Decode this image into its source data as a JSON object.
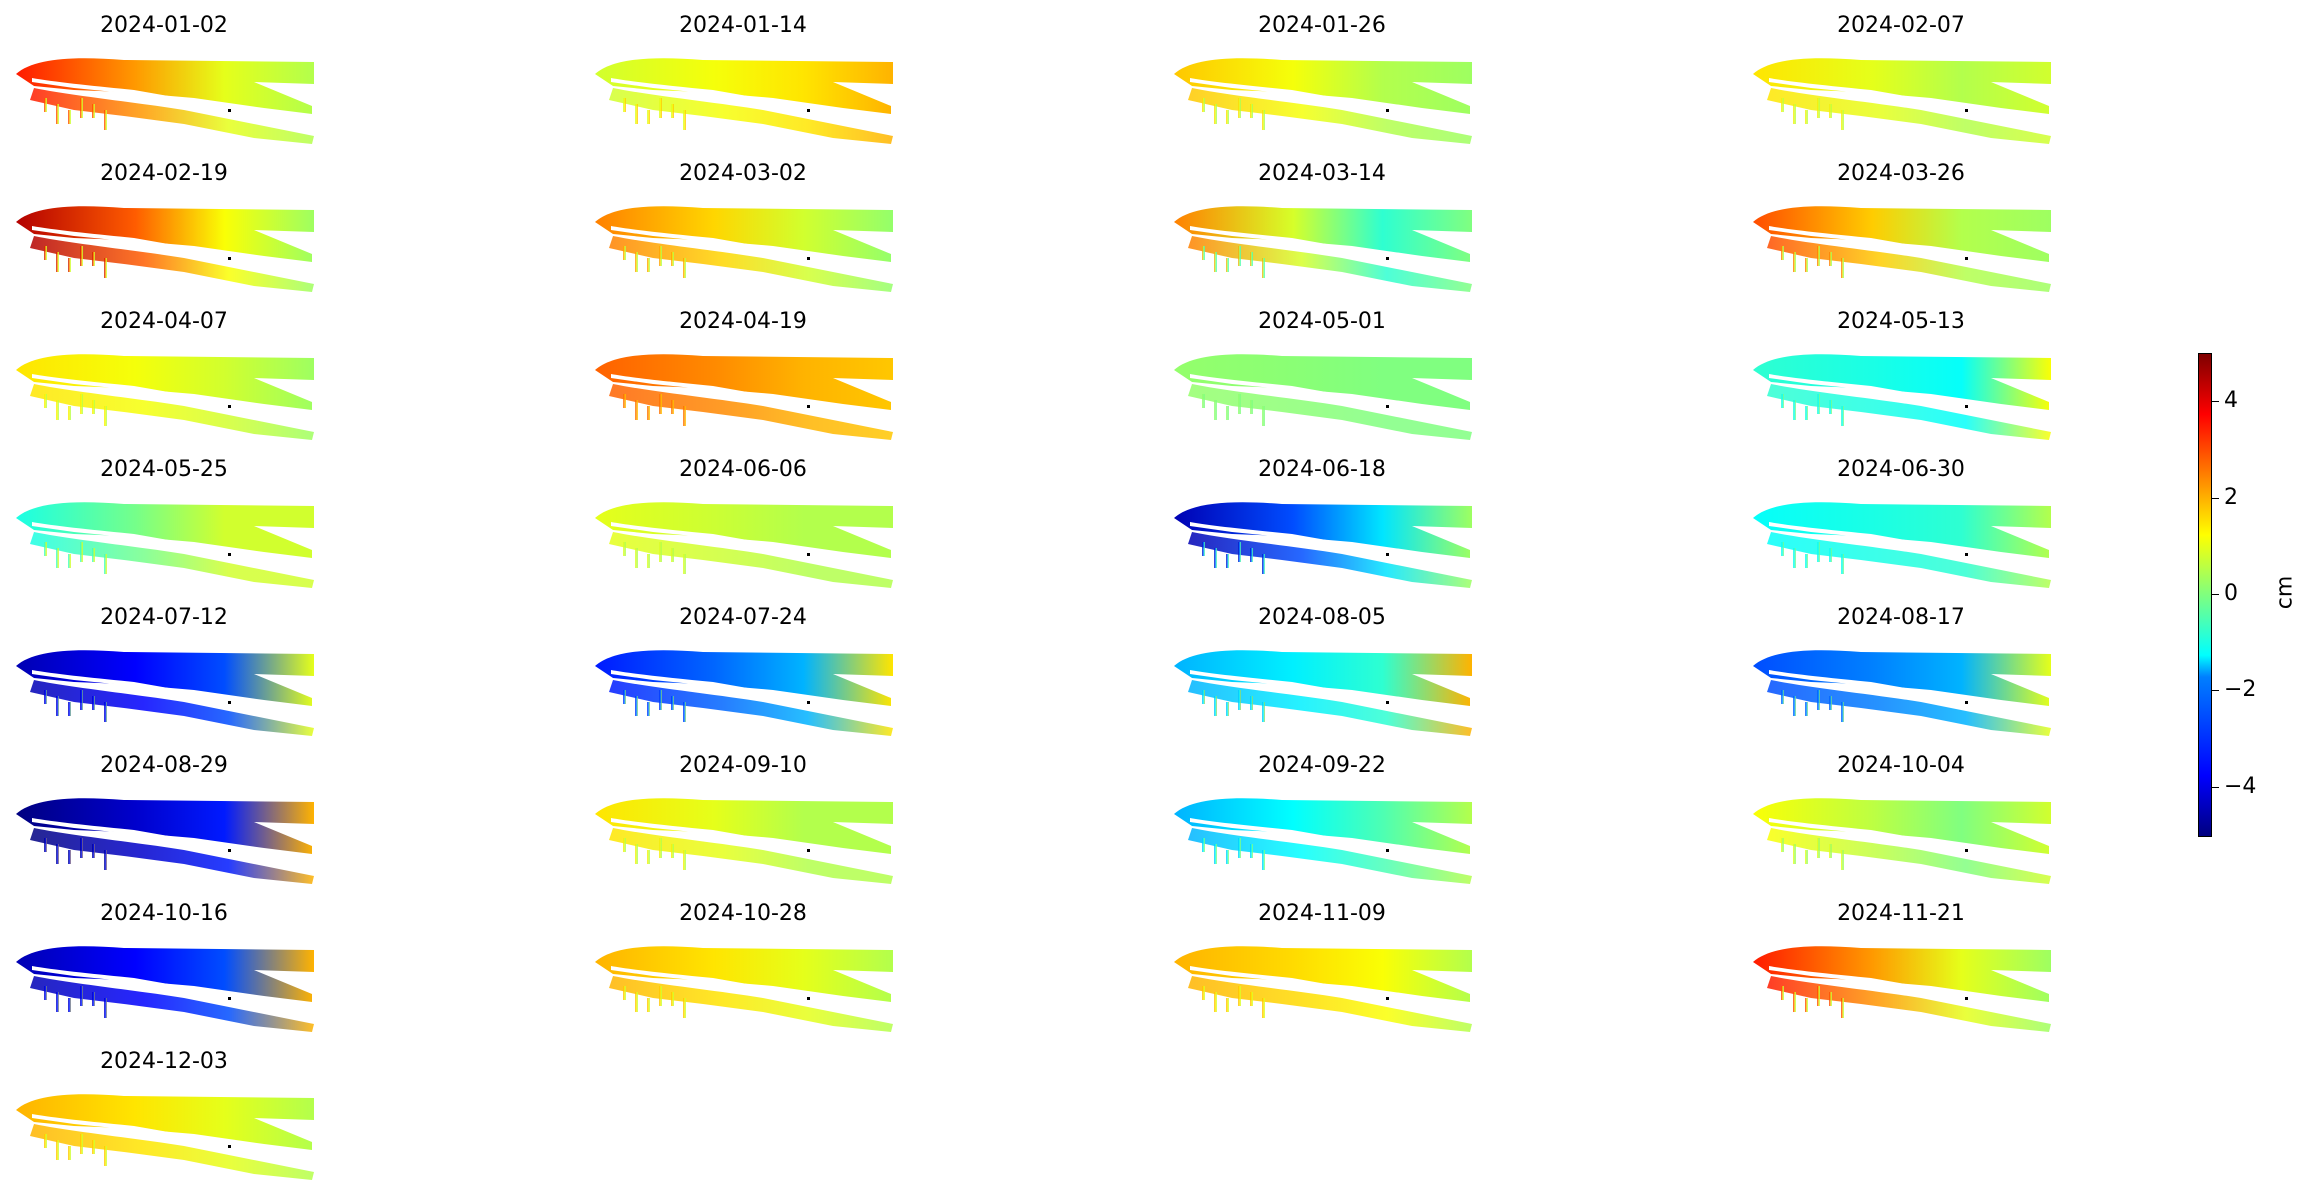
{
  "chart_data": {
    "type": "heatmap",
    "description_source": "displacement map panels",
    "colormap": "jet",
    "panels": [
      {
        "title": "2024-01-02",
        "head": 3.5,
        "mid": 1.0,
        "tail": 0.5
      },
      {
        "title": "2024-01-14",
        "head": 0.8,
        "mid": 1.5,
        "tail": 2.0
      },
      {
        "title": "2024-01-26",
        "head": 1.8,
        "mid": 0.5,
        "tail": 0.3
      },
      {
        "title": "2024-02-07",
        "head": 1.5,
        "mid": 0.5,
        "tail": 0.8
      },
      {
        "title": "2024-02-19",
        "head": 4.5,
        "mid": 1.2,
        "tail": 0.3
      },
      {
        "title": "2024-03-02",
        "head": 2.5,
        "mid": 0.8,
        "tail": 0.2
      },
      {
        "title": "2024-03-14",
        "head": 2.5,
        "mid": -0.8,
        "tail": 0.0
      },
      {
        "title": "2024-03-26",
        "head": 3.0,
        "mid": 0.5,
        "tail": 0.3
      },
      {
        "title": "2024-04-07",
        "head": 1.5,
        "mid": 0.8,
        "tail": 0.3
      },
      {
        "title": "2024-04-19",
        "head": 2.8,
        "mid": 2.0,
        "tail": 1.8
      },
      {
        "title": "2024-05-01",
        "head": 0.2,
        "mid": 0.0,
        "tail": 0.0
      },
      {
        "title": "2024-05-13",
        "head": -0.8,
        "mid": -1.2,
        "tail": 1.2
      },
      {
        "title": "2024-05-25",
        "head": -1.0,
        "mid": 0.8,
        "tail": 0.8
      },
      {
        "title": "2024-06-06",
        "head": 1.0,
        "mid": 0.5,
        "tail": 0.5
      },
      {
        "title": "2024-06-18",
        "head": -4.5,
        "mid": -1.5,
        "tail": 0.3
      },
      {
        "title": "2024-06-30",
        "head": -1.2,
        "mid": -0.8,
        "tail": 0.5
      },
      {
        "title": "2024-07-12",
        "head": -4.5,
        "mid": -3.0,
        "tail": 1.0
      },
      {
        "title": "2024-07-24",
        "head": -3.5,
        "mid": -2.0,
        "tail": 1.5
      },
      {
        "title": "2024-08-05",
        "head": -2.0,
        "mid": -0.8,
        "tail": 2.0
      },
      {
        "title": "2024-08-17",
        "head": -3.0,
        "mid": -2.0,
        "tail": 1.0
      },
      {
        "title": "2024-08-29",
        "head": -5.0,
        "mid": -3.5,
        "tail": 2.0
      },
      {
        "title": "2024-09-10",
        "head": 1.5,
        "mid": 0.5,
        "tail": 0.5
      },
      {
        "title": "2024-09-22",
        "head": -2.0,
        "mid": -0.5,
        "tail": 0.5
      },
      {
        "title": "2024-10-04",
        "head": 1.2,
        "mid": 0.0,
        "tail": 0.8
      },
      {
        "title": "2024-10-16",
        "head": -4.5,
        "mid": -3.0,
        "tail": 2.0
      },
      {
        "title": "2024-10-28",
        "head": 2.0,
        "mid": 1.0,
        "tail": 0.5
      },
      {
        "title": "2024-11-09",
        "head": 2.0,
        "mid": 1.2,
        "tail": 0.5
      },
      {
        "title": "2024-11-21",
        "head": 3.5,
        "mid": 1.0,
        "tail": 0.3
      },
      {
        "title": "2024-12-03",
        "head": 2.0,
        "mid": 1.0,
        "tail": 0.5
      }
    ],
    "colorbar": {
      "label": "cm",
      "vmin": -5,
      "vmax": 5,
      "ticks": [
        -4,
        -2,
        0,
        2,
        4
      ],
      "tick_labels": [
        "−4",
        "−2",
        "0",
        "2",
        "4"
      ]
    }
  }
}
